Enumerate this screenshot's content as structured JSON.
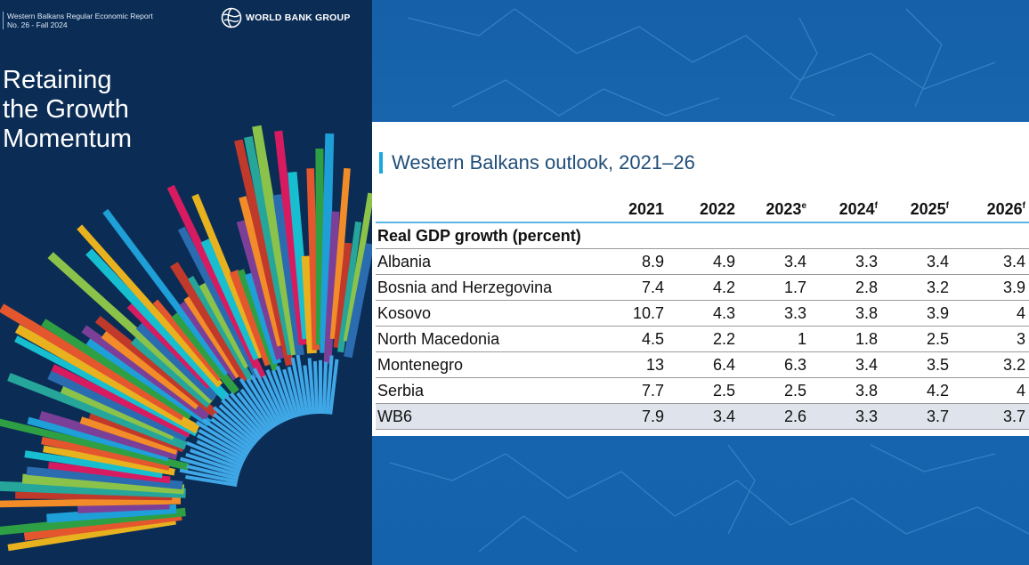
{
  "cover": {
    "report_name": "Western Balkans Regular Economic Report",
    "report_issue": "No. 26 - Fall 2024",
    "brand": "WORLD BANK GROUP",
    "title_lines": [
      "Retaining",
      "the Growth",
      "Momentum"
    ]
  },
  "table": {
    "title": "Western Balkans outlook, 2021–26",
    "columns": [
      {
        "year": "2021",
        "note": ""
      },
      {
        "year": "2022",
        "note": ""
      },
      {
        "year": "2023",
        "note": "e"
      },
      {
        "year": "2024",
        "note": "f"
      },
      {
        "year": "2025",
        "note": "f"
      },
      {
        "year": "2026",
        "note": "f"
      }
    ],
    "section_label": "Real GDP growth (percent)",
    "rows": [
      {
        "name": "Albania",
        "values": [
          "8.9",
          "4.9",
          "3.4",
          "3.3",
          "3.4",
          "3.4"
        ]
      },
      {
        "name": "Bosnia and Herzegovina",
        "values": [
          "7.4",
          "4.2",
          "1.7",
          "2.8",
          "3.2",
          "3.9"
        ]
      },
      {
        "name": "Kosovo",
        "values": [
          "10.7",
          "4.3",
          "3.3",
          "3.8",
          "3.9",
          "4"
        ]
      },
      {
        "name": "North Macedonia",
        "values": [
          "4.5",
          "2.2",
          "1",
          "1.8",
          "2.5",
          "3"
        ]
      },
      {
        "name": "Montenegro",
        "values": [
          "13",
          "6.4",
          "6.3",
          "3.4",
          "3.5",
          "3.2"
        ]
      },
      {
        "name": "Serbia",
        "values": [
          "7.7",
          "2.5",
          "2.5",
          "3.8",
          "4.2",
          "4"
        ]
      },
      {
        "name": "WB6",
        "values": [
          "7.9",
          "3.4",
          "2.6",
          "3.3",
          "3.7",
          "3.7"
        ]
      }
    ]
  },
  "colors": {
    "cover_background": "#0b2d55",
    "map_background": "#1560a8",
    "title_accent": "#17a8e0",
    "header_rule": "#5ab6e4",
    "total_row_fill": "#dfe4ec"
  }
}
